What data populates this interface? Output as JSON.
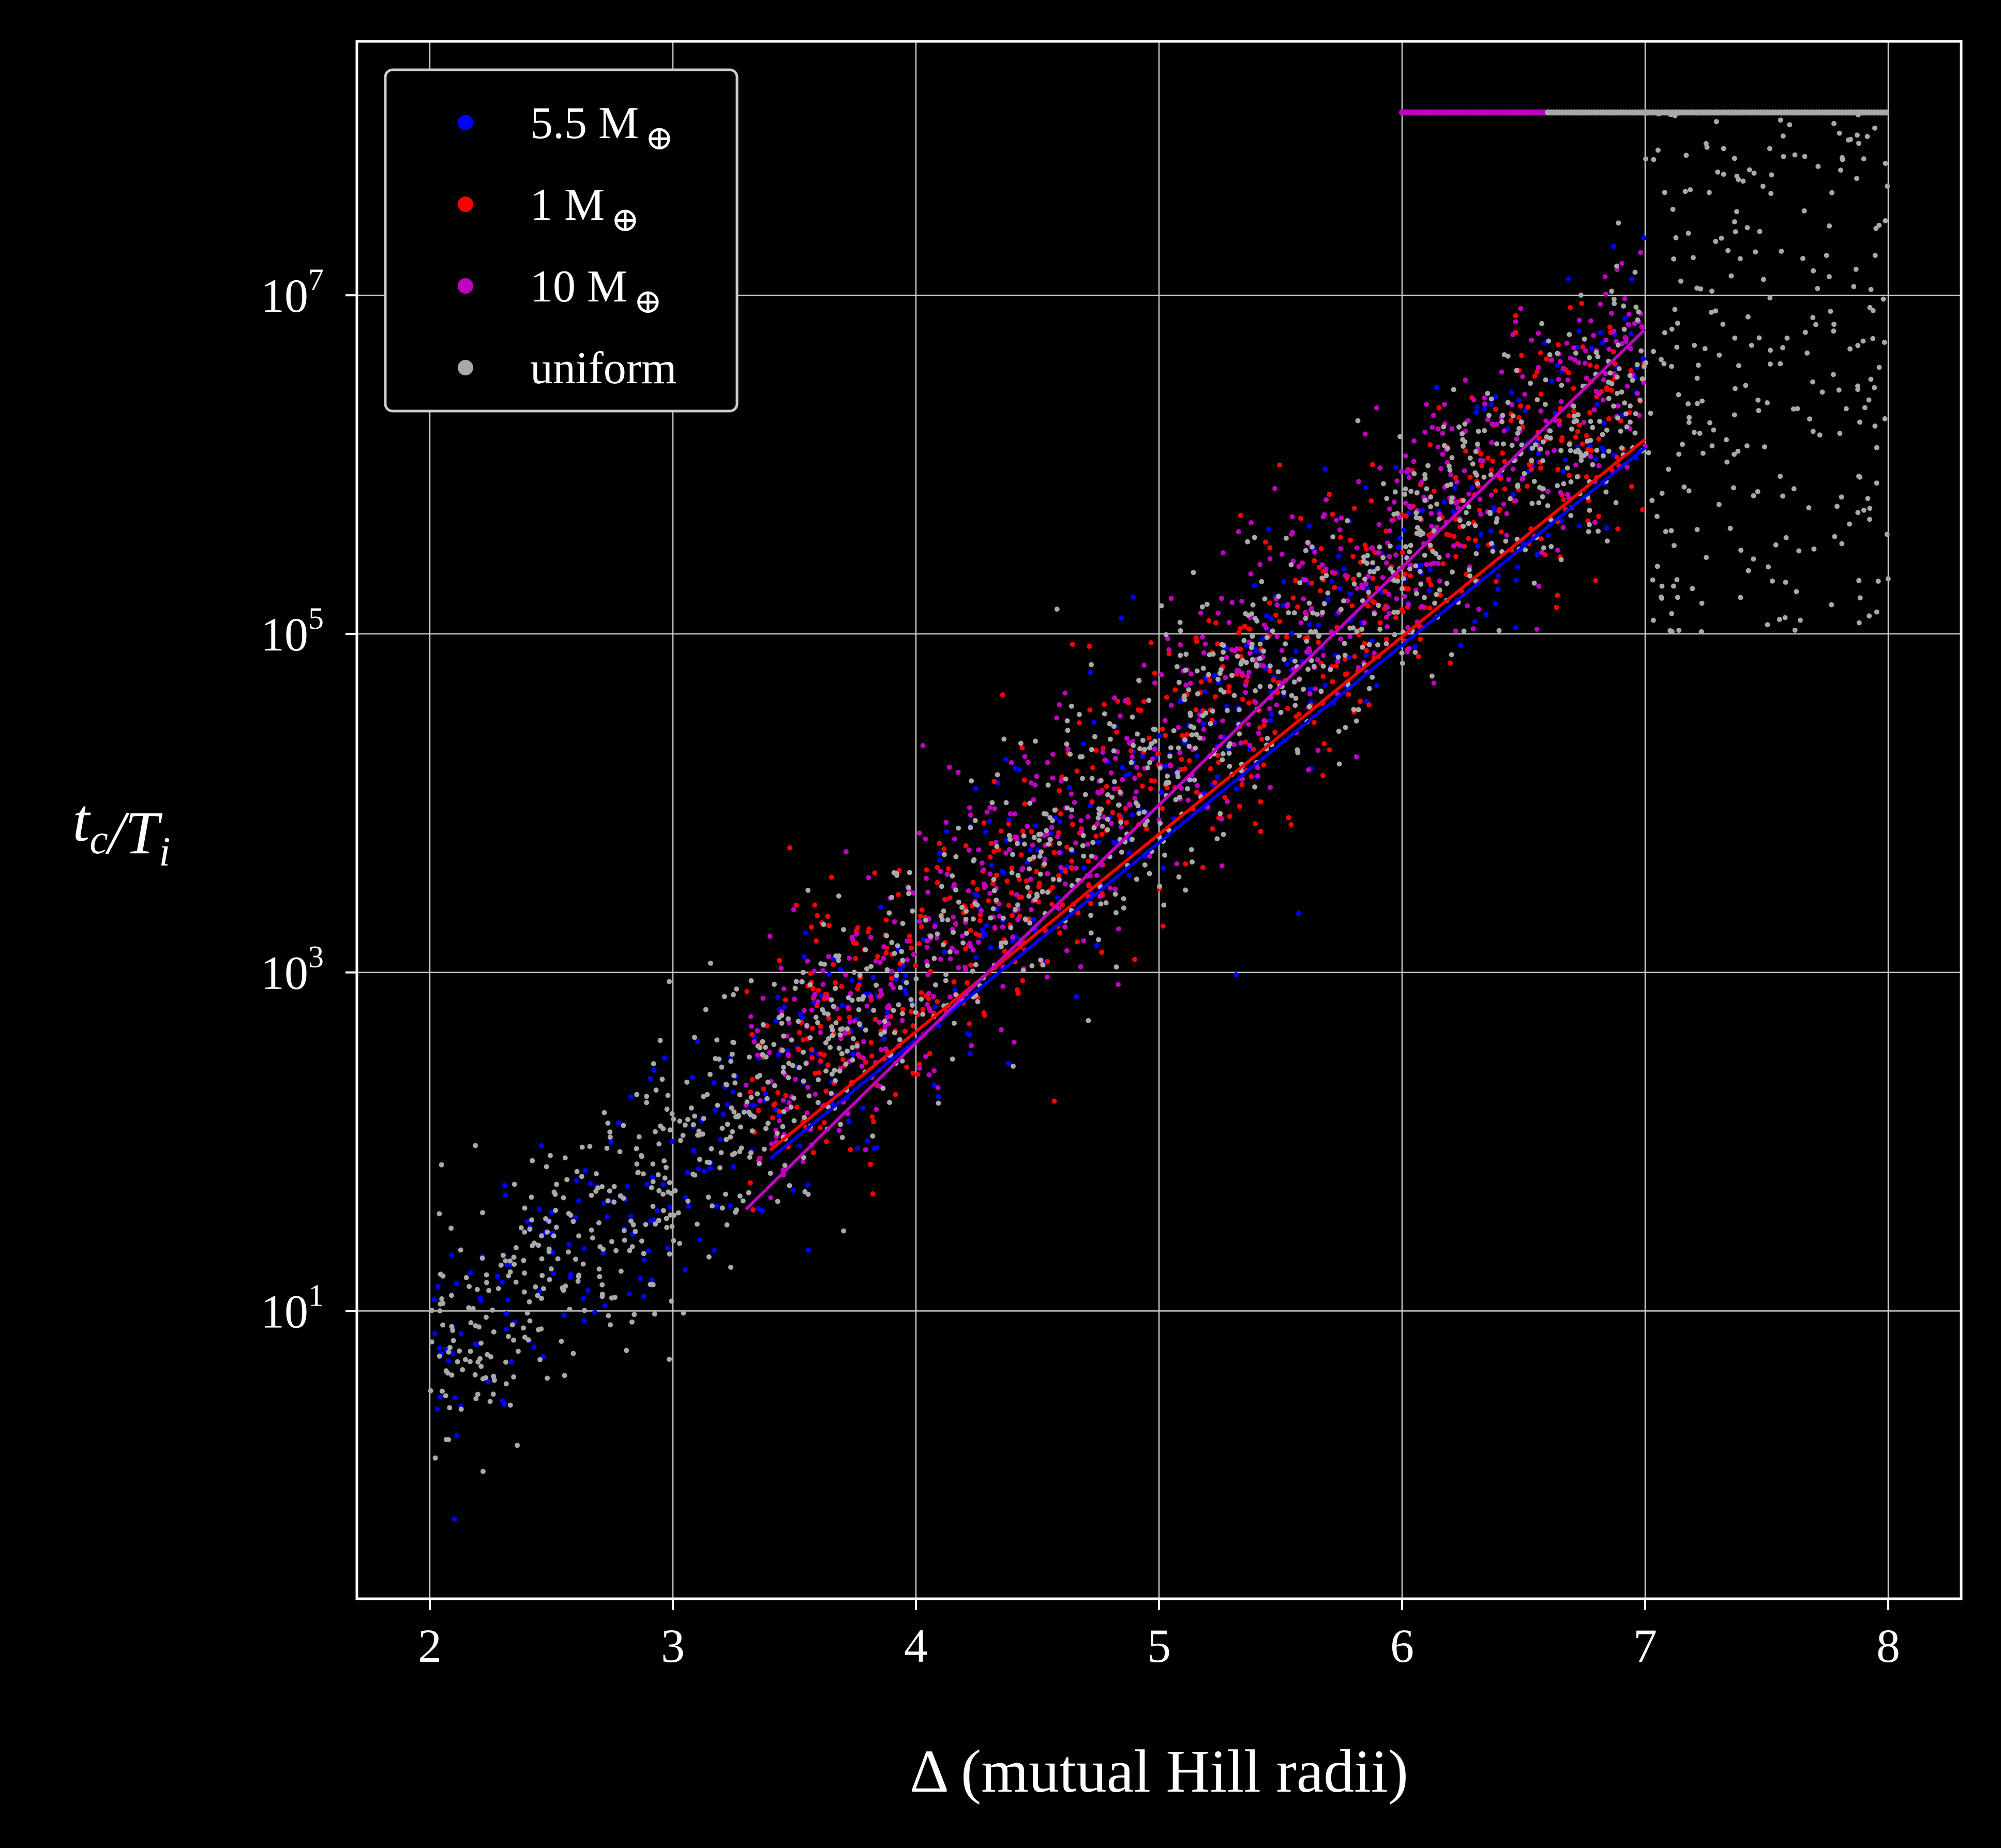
{
  "chart_data": {
    "type": "scatter",
    "title": "",
    "xlabel": "Δ (mutual Hill radii)",
    "ylabel": "t_c/T_i",
    "xlim": [
      1.7,
      8.3
    ],
    "ylim_log10": [
      -0.7,
      8.5
    ],
    "y_scale": "log",
    "grid": true,
    "legend": "upper-left",
    "x_ticks": [
      {
        "value": 2,
        "label": "2"
      },
      {
        "value": 3,
        "label": "3"
      },
      {
        "value": 4,
        "label": "4"
      },
      {
        "value": 5,
        "label": "5"
      },
      {
        "value": 6,
        "label": "6"
      },
      {
        "value": 7,
        "label": "7"
      },
      {
        "value": 8,
        "label": "8"
      }
    ],
    "y_ticks": [
      {
        "log10": 1,
        "base": "10",
        "exp": "1"
      },
      {
        "log10": 3,
        "base": "10",
        "exp": "3"
      },
      {
        "log10": 5,
        "base": "10",
        "exp": "5"
      },
      {
        "log10": 7,
        "base": "10",
        "exp": "7"
      }
    ],
    "series": [
      {
        "name": "5.5 M",
        "subscript": "⊕",
        "color": "#0000ff",
        "x_range": [
          2.0,
          7.0
        ],
        "fit": {
          "x": [
            3.4,
            7.0
          ],
          "log10_y": [
            1.9,
            6.1
          ]
        }
      },
      {
        "name": "1 M",
        "subscript": "⊕",
        "color": "#ff0000",
        "x_range": [
          3.3,
          7.0
        ],
        "fit": {
          "x": [
            3.4,
            7.0
          ],
          "log10_y": [
            1.95,
            6.15
          ]
        }
      },
      {
        "name": "10 M",
        "subscript": "⊕",
        "color": "#c000c0",
        "x_range": [
          3.3,
          7.0
        ],
        "fit": {
          "x": [
            3.3,
            7.0
          ],
          "log10_y": [
            1.6,
            6.8
          ]
        }
      },
      {
        "name": "uniform",
        "subscript": "",
        "color": "#a9a9a9",
        "x_range": [
          2.0,
          8.0
        ],
        "fit": null
      }
    ],
    "ceiling_log10": 8.08,
    "trend": {
      "intercept_log10_at_x2": 0.7,
      "slope_per_unit": 1.17,
      "scatter_sigma": 0.38
    }
  }
}
